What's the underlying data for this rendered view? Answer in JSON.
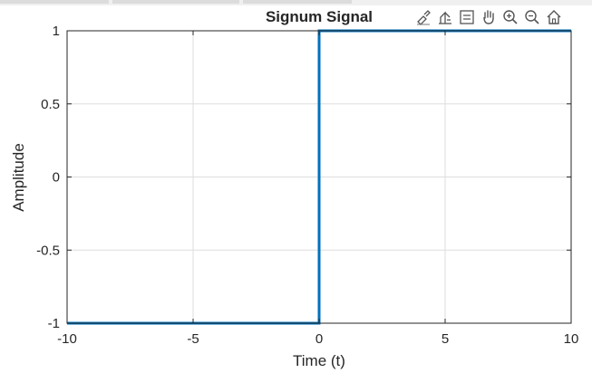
{
  "window": {},
  "toolbar": {
    "icons": [
      "brush-icon",
      "data-tips-icon",
      "legend-icon",
      "pan-icon",
      "zoom-in-icon",
      "zoom-out-icon",
      "home-icon"
    ]
  },
  "chart_data": {
    "type": "line",
    "title": "Signum Signal",
    "xlabel": "Time (t)",
    "ylabel": "Amplitude",
    "xlim": [
      -10,
      10
    ],
    "ylim": [
      -1,
      1
    ],
    "x_ticks": [
      -10,
      -5,
      0,
      5,
      10
    ],
    "x_tick_labels": [
      "-10",
      "-5",
      "0",
      "5",
      "10"
    ],
    "y_ticks": [
      -1,
      -0.5,
      0,
      0.5,
      1
    ],
    "y_tick_labels": [
      "-1",
      "-0.5",
      "0",
      "0.5",
      "1"
    ],
    "grid": true,
    "series": [
      {
        "x": [
          -10,
          0,
          0,
          10
        ],
        "y": [
          -1,
          -1,
          1,
          1
        ],
        "color": "#0072BD"
      }
    ]
  }
}
